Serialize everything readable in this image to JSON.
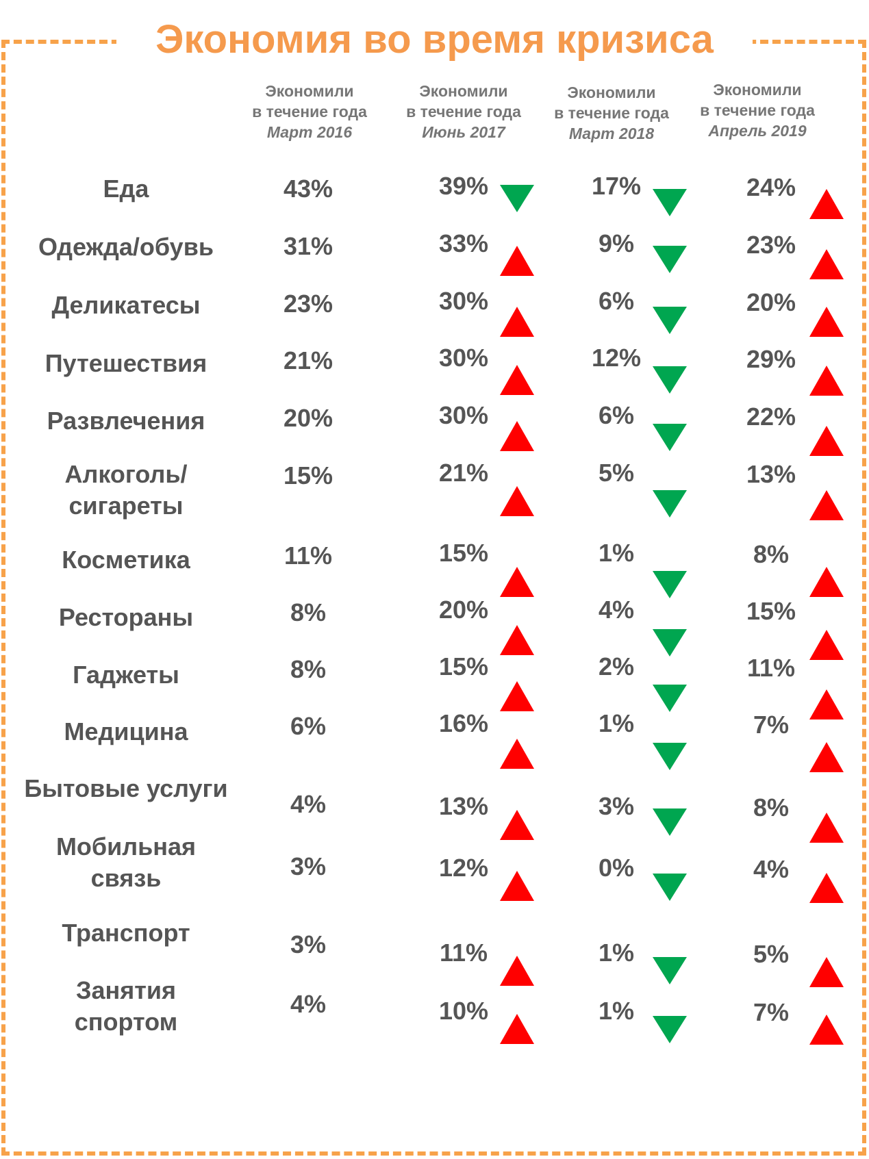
{
  "title": "Экономия во время кризиса",
  "colors": {
    "border": "#f7a24a",
    "title": "#f59a4d",
    "up": "#ff0000",
    "down": "#00a650",
    "text": "#555555"
  },
  "chart_data": {
    "type": "table",
    "columns": [
      {
        "line1": "Экономили",
        "line2": "в течение года",
        "date": "Март 2016"
      },
      {
        "line1": "Экономили",
        "line2": "в течение года",
        "date": "Июнь 2017"
      },
      {
        "line1": "Экономили",
        "line2": "в течение года",
        "date": "Март 2018"
      },
      {
        "line1": "Экономили",
        "line2": "в течение года",
        "date": "Апрель 2019"
      }
    ],
    "rows": [
      {
        "label": "Еда",
        "values": [
          "43%",
          "39%",
          "17%",
          "24%"
        ],
        "trends": [
          "down",
          "down",
          "up"
        ]
      },
      {
        "label": "Одежда/обувь",
        "values": [
          "31%",
          "33%",
          "9%",
          "23%"
        ],
        "trends": [
          "up",
          "down",
          "up"
        ]
      },
      {
        "label": "Деликатесы",
        "values": [
          "23%",
          "30%",
          "6%",
          "20%"
        ],
        "trends": [
          "up",
          "down",
          "up"
        ]
      },
      {
        "label": "Путешествия",
        "values": [
          "21%",
          "30%",
          "12%",
          "29%"
        ],
        "trends": [
          "up",
          "down",
          "up"
        ]
      },
      {
        "label": "Развлечения",
        "values": [
          "20%",
          "30%",
          "6%",
          "22%"
        ],
        "trends": [
          "up",
          "down",
          "up"
        ]
      },
      {
        "label": "Алкоголь/\nсигареты",
        "values": [
          "15%",
          "21%",
          "5%",
          "13%"
        ],
        "trends": [
          "up",
          "down",
          "up"
        ]
      },
      {
        "label": "Косметика",
        "values": [
          "11%",
          "15%",
          "1%",
          "8%"
        ],
        "trends": [
          "up",
          "down",
          "up"
        ]
      },
      {
        "label": "Рестораны",
        "values": [
          "8%",
          "20%",
          "4%",
          "15%"
        ],
        "trends": [
          "up",
          "down",
          "up"
        ]
      },
      {
        "label": "Гаджеты",
        "values": [
          "8%",
          "15%",
          "2%",
          "11%"
        ],
        "trends": [
          "up",
          "down",
          "up"
        ]
      },
      {
        "label": "Медицина",
        "values": [
          "6%",
          "16%",
          "1%",
          "7%"
        ],
        "trends": [
          "up",
          "down",
          "up"
        ]
      },
      {
        "label": "Бытовые услуги",
        "values": [
          "4%",
          "13%",
          "3%",
          "8%"
        ],
        "trends": [
          "up",
          "down",
          "up"
        ]
      },
      {
        "label": "Мобильная\nсвязь",
        "values": [
          "3%",
          "12%",
          "0%",
          "4%"
        ],
        "trends": [
          "up",
          "down",
          "up"
        ]
      },
      {
        "label": "Транспорт",
        "values": [
          "3%",
          "11%",
          "1%",
          "5%"
        ],
        "trends": [
          "up",
          "down",
          "up"
        ]
      },
      {
        "label": "Занятия\nспортом",
        "values": [
          "4%",
          "10%",
          "1%",
          "7%"
        ],
        "trends": [
          "up",
          "down",
          "up"
        ]
      }
    ]
  }
}
